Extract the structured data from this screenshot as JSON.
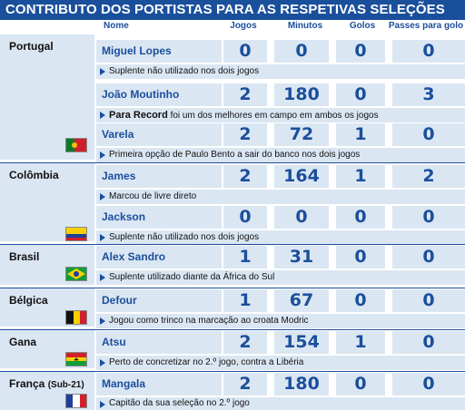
{
  "title": "CONTRIBUTO DOS PORTISTAS PARA AS RESPETIVAS SELEÇÕES",
  "headers": {
    "nome": "Nome",
    "jogos": "Jogos",
    "minutos": "Minutos",
    "golos": "Golos",
    "passes": "Passes para golo"
  },
  "countries": [
    {
      "name": "Portugal",
      "sub": "",
      "flag": "portugal-flag"
    },
    {
      "name": "Colômbia",
      "sub": "",
      "flag": "colombia-flag"
    },
    {
      "name": "Brasil",
      "sub": "",
      "flag": "brazil-flag"
    },
    {
      "name": "Bélgica",
      "sub": "",
      "flag": "belgium-flag"
    },
    {
      "name": "Gana",
      "sub": "",
      "flag": "ghana-flag"
    },
    {
      "name": "França",
      "sub": "(Sub-21)",
      "flag": "france-flag"
    }
  ],
  "players": [
    {
      "name": "Miguel Lopes",
      "jogos": "0",
      "minutos": "0",
      "golos": "0",
      "passes": "0",
      "note_bold": "",
      "note": "Suplente não utilizado nos dois jogos"
    },
    {
      "name": "João Moutinho",
      "jogos": "2",
      "minutos": "180",
      "golos": "0",
      "passes": "3",
      "note_bold": "Para Record",
      "note": " foi um dos melhores em campo em ambos os jogos"
    },
    {
      "name": "Varela",
      "jogos": "2",
      "minutos": "72",
      "golos": "1",
      "passes": "0",
      "note_bold": "",
      "note": "Primeira opção de Paulo Bento a sair do banco nos dois jogos"
    },
    {
      "name": "James",
      "jogos": "2",
      "minutos": "164",
      "golos": "1",
      "passes": "2",
      "note_bold": "",
      "note": "Marcou de livre direto"
    },
    {
      "name": "Jackson",
      "jogos": "0",
      "minutos": "0",
      "golos": "0",
      "passes": "0",
      "note_bold": "",
      "note": "Suplente não utilizado nos dois jogos"
    },
    {
      "name": "Alex Sandro",
      "jogos": "1",
      "minutos": "31",
      "golos": "0",
      "passes": "0",
      "note_bold": "",
      "note": "Suplente utilizado diante da África do Sul"
    },
    {
      "name": "Defour",
      "jogos": "1",
      "minutos": "67",
      "golos": "0",
      "passes": "0",
      "note_bold": "",
      "note": "Jogou como trinco na marcação ao croata Modric"
    },
    {
      "name": "Atsu",
      "jogos": "2",
      "minutos": "154",
      "golos": "1",
      "passes": "0",
      "note_bold": "",
      "note": "Perto de concretizar no 2.º jogo, contra a Libéria"
    },
    {
      "name": "Mangala",
      "jogos": "2",
      "minutos": "180",
      "golos": "0",
      "passes": "0",
      "note_bold": "",
      "note": "Capitão da sua seleção no 2.º jogo"
    }
  ],
  "colors": {
    "primary": "#1a4f9c",
    "light": "#dbe6f3"
  }
}
